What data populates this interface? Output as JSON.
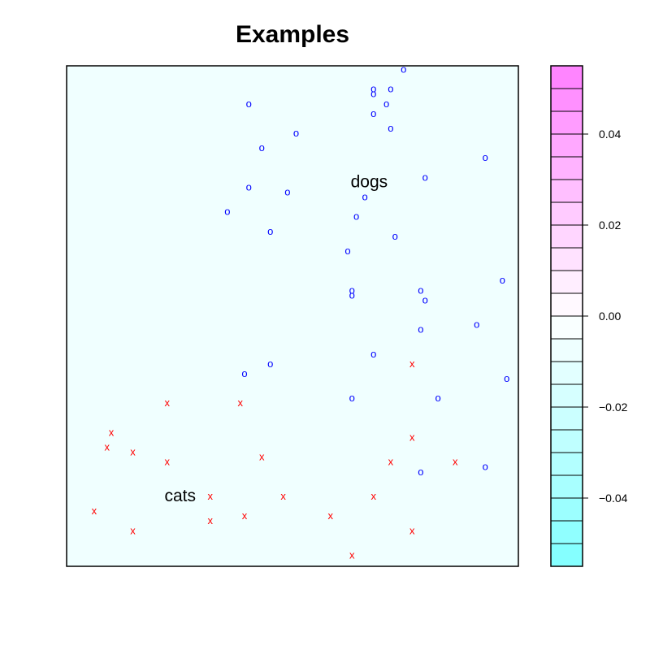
{
  "chart_data": {
    "type": "scatter",
    "title": "Examples",
    "xlim": [
      0,
      1
    ],
    "ylim": [
      0,
      1
    ],
    "series": [
      {
        "marker": "o",
        "color": "#0000ff",
        "points": [
          [
            0.75,
            1.0
          ],
          [
            0.68,
            0.96
          ],
          [
            0.72,
            0.96
          ],
          [
            0.68,
            0.95
          ],
          [
            0.71,
            0.93
          ],
          [
            0.39,
            0.93
          ],
          [
            0.68,
            0.91
          ],
          [
            0.72,
            0.88
          ],
          [
            0.5,
            0.87
          ],
          [
            0.42,
            0.84
          ],
          [
            0.94,
            0.82
          ],
          [
            0.8,
            0.78
          ],
          [
            0.39,
            0.76
          ],
          [
            0.48,
            0.75
          ],
          [
            0.66,
            0.74
          ],
          [
            0.34,
            0.71
          ],
          [
            0.64,
            0.7
          ],
          [
            0.44,
            0.67
          ],
          [
            0.73,
            0.66
          ],
          [
            0.62,
            0.63
          ],
          [
            0.98,
            0.57
          ],
          [
            0.79,
            0.55
          ],
          [
            0.63,
            0.55
          ],
          [
            0.63,
            0.54
          ],
          [
            0.8,
            0.53
          ],
          [
            0.92,
            0.48
          ],
          [
            0.79,
            0.47
          ],
          [
            0.68,
            0.42
          ],
          [
            0.44,
            0.4
          ],
          [
            0.38,
            0.38
          ],
          [
            0.99,
            0.37
          ],
          [
            0.83,
            0.33
          ],
          [
            0.63,
            0.33
          ],
          [
            0.94,
            0.19
          ],
          [
            0.79,
            0.18
          ]
        ]
      },
      {
        "marker": "x",
        "color": "#ff0000",
        "points": [
          [
            0.77,
            0.4
          ],
          [
            0.2,
            0.32
          ],
          [
            0.37,
            0.32
          ],
          [
            0.07,
            0.26
          ],
          [
            0.77,
            0.25
          ],
          [
            0.06,
            0.23
          ],
          [
            0.12,
            0.22
          ],
          [
            0.42,
            0.21
          ],
          [
            0.2,
            0.2
          ],
          [
            0.72,
            0.2
          ],
          [
            0.87,
            0.2
          ],
          [
            0.3,
            0.13
          ],
          [
            0.47,
            0.13
          ],
          [
            0.68,
            0.13
          ],
          [
            0.03,
            0.1
          ],
          [
            0.38,
            0.09
          ],
          [
            0.58,
            0.09
          ],
          [
            0.3,
            0.08
          ],
          [
            0.12,
            0.06
          ],
          [
            0.77,
            0.06
          ],
          [
            0.63,
            0.01
          ]
        ]
      }
    ],
    "annotations": [
      {
        "text": "dogs",
        "x": 0.67,
        "y": 0.77
      },
      {
        "text": "cats",
        "x": 0.23,
        "y": 0.13
      }
    ],
    "colorbar": {
      "range": [
        -0.055,
        0.055
      ],
      "ticks": [
        -0.04,
        -0.02,
        0.0,
        0.02,
        0.04
      ],
      "tick_labels": [
        "−0.04",
        "−0.02",
        "0.00",
        "0.02",
        "0.04"
      ],
      "low_color": "#7fffff",
      "mid_color": "#ffffff",
      "high_color": "#ff7fff",
      "levels": 22
    },
    "background": "#f0ffff"
  }
}
